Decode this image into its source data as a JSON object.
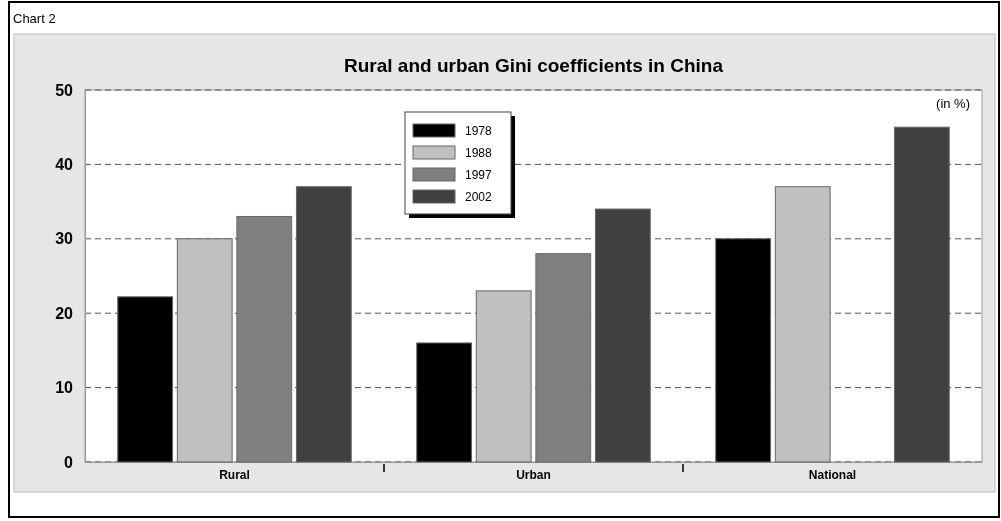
{
  "chart_data": {
    "type": "bar",
    "title": "Rural and urban Gini coefficients in China",
    "annotations": [
      "Chart 2",
      "(in %)"
    ],
    "categories": [
      "Rural",
      "Urban",
      "National"
    ],
    "series": [
      {
        "name": "1978",
        "color": "#000000",
        "values": [
          22.2,
          16,
          30
        ]
      },
      {
        "name": "1988",
        "color": "#c0c0c0",
        "values": [
          30,
          23,
          37
        ]
      },
      {
        "name": "1997",
        "color": "#808080",
        "values": [
          33,
          28,
          0
        ]
      },
      {
        "name": "2002",
        "color": "#404040",
        "values": [
          37,
          34,
          45
        ]
      }
    ],
    "ylim": [
      0,
      50
    ],
    "yticks": [
      0,
      10,
      20,
      30,
      40,
      50
    ],
    "grid": "y",
    "legend": "top"
  }
}
